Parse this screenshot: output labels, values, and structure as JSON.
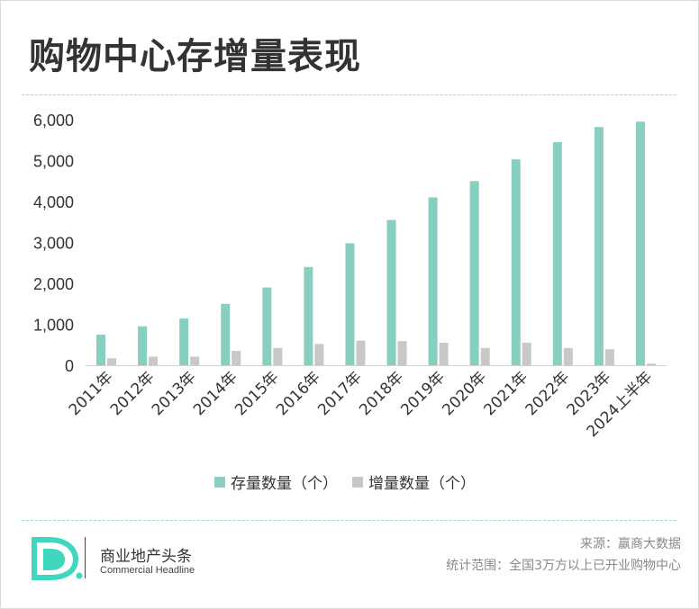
{
  "title": "购物中心存增量表现",
  "colors": {
    "stock": "#88cfbf",
    "increment": "#c8c8c8",
    "accent": "#3fd8bf",
    "axis": "#d0d0d0"
  },
  "chart_data": {
    "type": "bar",
    "categories": [
      "2011年",
      "2012年",
      "2013年",
      "2014年",
      "2015年",
      "2016年",
      "2017年",
      "2018年",
      "2019年",
      "2020年",
      "2021年",
      "2022年",
      "2023年",
      "2024上半年"
    ],
    "series": [
      {
        "name": "存量数量（个）",
        "values": [
          750,
          950,
          1140,
          1500,
          1900,
          2400,
          2980,
          3550,
          4100,
          4500,
          5030,
          5450,
          5820,
          5950
        ]
      },
      {
        "name": "增量数量（个）",
        "values": [
          170,
          210,
          210,
          350,
          420,
          520,
          600,
          590,
          550,
          420,
          550,
          420,
          390,
          40
        ]
      }
    ],
    "ylim": [
      0,
      6000
    ],
    "yticks": [
      "6,000",
      "5,000",
      "4,000",
      "3,000",
      "2,000",
      "1,000",
      "0"
    ],
    "ytick_values": [
      6000,
      5000,
      4000,
      3000,
      2000,
      1000,
      0
    ],
    "grid": false,
    "legend": "bottom"
  },
  "footer": {
    "brand_cn": "商业地产头条",
    "brand_en": "Commercial Headline",
    "source": "来源：赢商大数据",
    "scope": "统计范围：全国3万方以上已开业购物中心"
  }
}
